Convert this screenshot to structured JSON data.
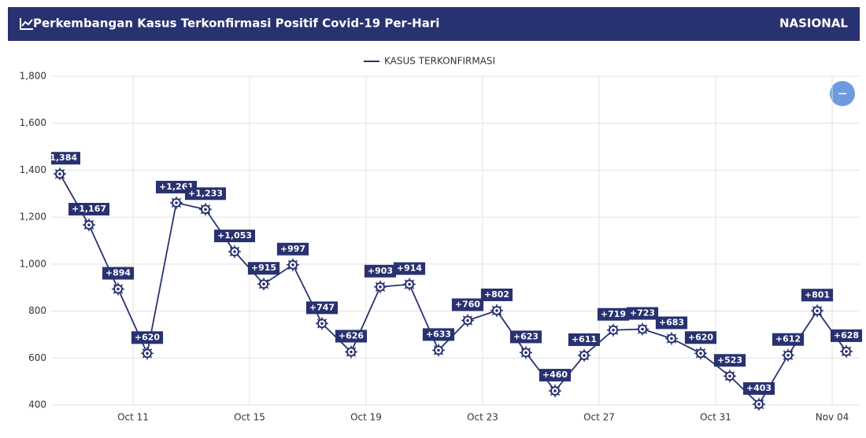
{
  "header": {
    "title": "Perkembangan Kasus Terkonfirmasi Positif Covid-19 Per-Hari",
    "region": "NASIONAL"
  },
  "chart_data": {
    "type": "line",
    "categories": [
      null,
      null,
      null,
      "Oct 11",
      null,
      null,
      null,
      "Oct 15",
      null,
      null,
      null,
      "Oct 19",
      null,
      null,
      null,
      "Oct 23",
      null,
      null,
      null,
      "Oct 27",
      null,
      null,
      null,
      "Oct 31",
      null,
      null,
      null,
      "Nov 04"
    ],
    "series": [
      {
        "name": "KASUS TERKONFIRMASI",
        "color": "#283270",
        "values": [
          1384,
          1167,
          894,
          620,
          1261,
          1233,
          1053,
          915,
          997,
          747,
          626,
          903,
          914,
          633,
          760,
          802,
          623,
          460,
          611,
          719,
          723,
          683,
          620,
          523,
          403,
          612,
          801,
          628
        ],
        "value_labels": [
          "+1,384",
          "+1,167",
          "+894",
          "+620",
          "+1,261",
          "+1,233",
          "+1,053",
          "+915",
          "+997",
          "+747",
          "+626",
          "+903",
          "+914",
          "+633",
          "+760",
          "+802",
          "+623",
          "+460",
          "+611",
          "+719",
          "+723",
          "+683",
          "+620",
          "+523",
          "+403",
          "+612",
          "+801",
          "+628"
        ]
      }
    ],
    "ylim": [
      400,
      1800
    ],
    "yticks": [
      400,
      600,
      800,
      {
        "value": 1000,
        "label": "1,000"
      },
      {
        "value": 1200,
        "label": "1,200"
      },
      {
        "value": 1400,
        "label": "1,400"
      },
      {
        "value": 1600,
        "label": "1,600"
      },
      {
        "value": 1800,
        "label": "1,800"
      }
    ],
    "grid": true
  }
}
